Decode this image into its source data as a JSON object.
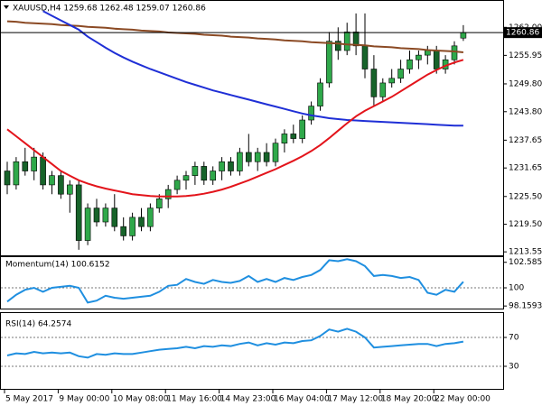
{
  "chart_data": [
    {
      "type": "candlestick",
      "title": "XAUUSD,H4 1259.68 1262.48 1259.07 1260.86",
      "categories": [
        "5 May 2017",
        null,
        null,
        null,
        null,
        null,
        "9 May 00:00",
        null,
        null,
        null,
        null,
        null,
        "10 May 08:00",
        null,
        null,
        null,
        null,
        null,
        "11 May 16:00",
        null,
        null,
        null,
        null,
        null,
        "14 May 23:00",
        null,
        null,
        null,
        null,
        null,
        "16 May 04:00",
        null,
        null,
        null,
        null,
        null,
        "17 May 12:00",
        null,
        null,
        null,
        null,
        null,
        "18 May 20:00",
        null,
        null,
        null,
        null,
        null,
        "22 May 00:00",
        null,
        null,
        null
      ],
      "open": [
        1231,
        1228,
        1233,
        1231,
        1234,
        1228,
        1230,
        1226,
        1228,
        1216,
        1223,
        1220,
        1223,
        1219,
        1217,
        1221,
        1219,
        1223,
        1225,
        1227,
        1229,
        1230,
        1232,
        1229,
        1231,
        1233,
        1231,
        1235,
        1233,
        1235,
        1233,
        1237,
        1239,
        1238,
        1242,
        1245,
        1250,
        1259,
        1257,
        1261,
        1258,
        1253,
        1247,
        1250,
        1251,
        1253,
        1255,
        1256,
        1257,
        1253,
        1255,
        1259.68
      ],
      "high": [
        1233,
        1234,
        1236,
        1236,
        1235,
        1231,
        1231,
        1229,
        1229,
        1224,
        1225,
        1224,
        1226,
        1221,
        1222,
        1223,
        1224,
        1226,
        1228,
        1230,
        1231,
        1233,
        1233,
        1232,
        1234,
        1234,
        1236,
        1239,
        1236,
        1237,
        1238,
        1240,
        1241,
        1243,
        1246,
        1251,
        1261,
        1262,
        1263,
        1265,
        1265,
        1256,
        1251,
        1253,
        1255,
        1257,
        1257,
        1258,
        1258,
        1256,
        1259,
        1262.48
      ],
      "low": [
        1226,
        1227,
        1230,
        1229,
        1227,
        1226,
        1225,
        1222,
        1214,
        1215,
        1219,
        1219,
        1218,
        1216,
        1216,
        1218,
        1218,
        1222,
        1223,
        1226,
        1227,
        1228,
        1228,
        1228,
        1229,
        1230,
        1230,
        1232,
        1231,
        1232,
        1232,
        1235,
        1237,
        1237,
        1241,
        1244,
        1249,
        1255,
        1256,
        1256,
        1251,
        1245,
        1246,
        1249,
        1250,
        1252,
        1253,
        1254,
        1252,
        1252,
        1254,
        1259.07
      ],
      "close": [
        1228,
        1233,
        1231,
        1234,
        1228,
        1230,
        1226,
        1228,
        1216,
        1223,
        1220,
        1223,
        1219,
        1217,
        1221,
        1219,
        1223,
        1225,
        1227,
        1229,
        1230,
        1232,
        1229,
        1231,
        1233,
        1231,
        1235,
        1233,
        1235,
        1233,
        1237,
        1239,
        1238,
        1242,
        1245,
        1250,
        1259,
        1257,
        1261,
        1258,
        1253,
        1247,
        1250,
        1251,
        1253,
        1255,
        1256,
        1257,
        1253,
        1255,
        1258,
        1260.86
      ],
      "up_color": "#2fa84a",
      "down_color": "#17632a",
      "series": [
        {
          "color": "#8b4a24",
          "values": [
            1263.3,
            1263.2,
            1263.0,
            1262.9,
            1262.8,
            1262.7,
            1262.5,
            1262.4,
            1262.3,
            1262.1,
            1262.0,
            1261.9,
            1261.7,
            1261.6,
            1261.5,
            1261.3,
            1261.2,
            1261.1,
            1260.9,
            1260.8,
            1260.7,
            1260.6,
            1260.4,
            1260.3,
            1260.2,
            1260.0,
            1259.9,
            1259.8,
            1259.6,
            1259.5,
            1259.4,
            1259.2,
            1259.1,
            1259.0,
            1258.8,
            1258.7,
            1258.6,
            1258.5,
            1258.3,
            1258.2,
            1258.1,
            1257.9,
            1257.8,
            1257.7,
            1257.5,
            1257.4,
            1257.3,
            1257.1,
            1257.0,
            1256.9,
            1256.8,
            1256.6
          ]
        },
        {
          "color": "#1f2fd6",
          "values": [
            null,
            null,
            null,
            null,
            1265.5,
            1264.5,
            1263.5,
            1262.5,
            1261.5,
            1260.0,
            1258.8,
            1257.6,
            1256.5,
            1255.5,
            1254.6,
            1253.8,
            1253.0,
            1252.3,
            1251.6,
            1250.9,
            1250.2,
            1249.6,
            1249.0,
            1248.4,
            1247.9,
            1247.4,
            1246.9,
            1246.4,
            1245.9,
            1245.4,
            1244.9,
            1244.4,
            1243.9,
            1243.4,
            1243.0,
            1242.7,
            1242.4,
            1242.2,
            1242.0,
            1241.9,
            1241.8,
            1241.7,
            1241.6,
            1241.5,
            1241.4,
            1241.3,
            1241.2,
            1241.1,
            1241.0,
            1240.9,
            1240.8,
            1240.8
          ]
        },
        {
          "color": "#e3141b",
          "values": [
            1240,
            1238.5,
            1237,
            1235.5,
            1234,
            1232.5,
            1231,
            1230,
            1229,
            1228.3,
            1227.7,
            1227.2,
            1226.8,
            1226.4,
            1226,
            1225.8,
            1225.6,
            1225.5,
            1225.5,
            1225.5,
            1225.6,
            1225.8,
            1226.1,
            1226.5,
            1227,
            1227.6,
            1228.3,
            1229,
            1229.8,
            1230.6,
            1231.4,
            1232.3,
            1233.2,
            1234.2,
            1235.3,
            1236.6,
            1238.1,
            1239.7,
            1241.3,
            1242.8,
            1244,
            1245,
            1246,
            1247,
            1248.2,
            1249.4,
            1250.6,
            1251.8,
            1252.8,
            1253.7,
            1254.4,
            1255
          ]
        }
      ],
      "last_price": 1260.86,
      "ylim": [
        1212.8,
        1267.9
      ],
      "yticks": [
        1213.55,
        {
          "value": 1219.5,
          "label": "1219.50"
        },
        {
          "value": 1225.5,
          "label": "1225.50"
        },
        1231.65,
        1237.65,
        {
          "value": 1243.8,
          "label": "1243.80"
        },
        {
          "value": 1249.8,
          "label": "1249.80"
        },
        1255.95,
        {
          "value": 1262,
          "label": "1262.00"
        }
      ]
    },
    {
      "type": "line",
      "title": "Momentum(14) 100.6152",
      "color": "#1f8fe0",
      "values": [
        98.6,
        99.3,
        99.8,
        100.0,
        99.6,
        100.0,
        100.1,
        100.2,
        100.0,
        98.5,
        98.7,
        99.2,
        99.0,
        98.9,
        99.0,
        99.1,
        99.2,
        99.6,
        100.2,
        100.3,
        100.9,
        100.6,
        100.4,
        100.8,
        100.6,
        100.5,
        100.7,
        101.2,
        100.6,
        100.9,
        100.6,
        101.0,
        100.8,
        101.1,
        101.3,
        101.8,
        102.8,
        102.7,
        102.9,
        102.7,
        102.2,
        101.2,
        101.3,
        101.2,
        101.0,
        101.1,
        100.8,
        99.5,
        99.3,
        99.8,
        99.6,
        100.6152
      ],
      "levels": [
        100
      ],
      "ylim": [
        97.9,
        103.2
      ],
      "yticks": [
        102.5858,
        100,
        98.1593
      ]
    },
    {
      "type": "line",
      "title": "RSI(14) 64.2574",
      "color": "#1f8fe0",
      "values": [
        45,
        48,
        47,
        50,
        48,
        49,
        48,
        49,
        44,
        42,
        47,
        46,
        48,
        47,
        47,
        49,
        51,
        53,
        54,
        55,
        57,
        55,
        58,
        57,
        59,
        58,
        61,
        63,
        59,
        62,
        60,
        63,
        62,
        65,
        66,
        72,
        81,
        78,
        82,
        78,
        70,
        56,
        57,
        58,
        59,
        60,
        61,
        61,
        58,
        61,
        62,
        64.2574
      ],
      "levels": [
        70,
        30
      ],
      "ylim": [
        0,
        100
      ],
      "yticks": [
        70,
        30
      ]
    }
  ]
}
